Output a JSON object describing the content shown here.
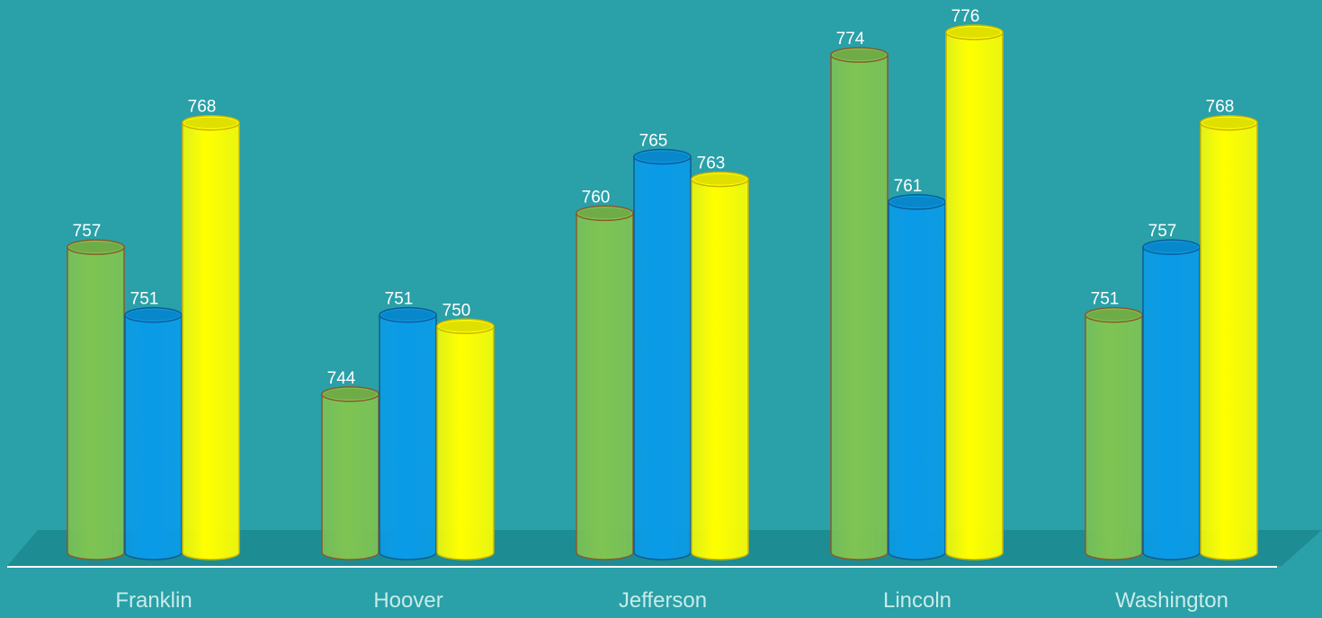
{
  "chart_data": {
    "type": "bar",
    "style": "3d-cylinder",
    "categories": [
      "Franklin",
      "Hoover",
      "Jefferson",
      "Lincoln",
      "Washington"
    ],
    "series": [
      {
        "values": [
          757,
          744,
          760,
          774,
          751
        ],
        "color": "#7fc452",
        "edge": "#8a5a2a"
      },
      {
        "values": [
          751,
          751,
          765,
          761,
          757
        ],
        "color": "#0a9be8",
        "edge": "#0b5e95"
      },
      {
        "values": [
          768,
          750,
          763,
          776,
          768
        ],
        "color": "#ffff00",
        "edge": "#c9b400"
      }
    ],
    "title": "",
    "xlabel": "",
    "ylabel": "",
    "ylim": [
      730,
      776
    ],
    "grid": false,
    "legend": "none",
    "data_labels": true,
    "background": "#2aa0a8",
    "floor_color": "#1e8c93",
    "axis_line_color": "#ffffff",
    "label_color": "#c7ece9"
  }
}
